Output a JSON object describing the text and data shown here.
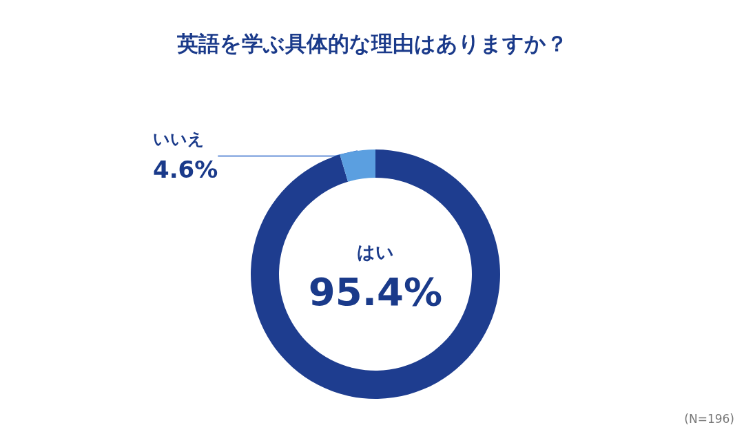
{
  "chart_data": {
    "type": "donut",
    "title": "英語を学ぶ具体的な理由はありますか？",
    "categories": [
      "はい",
      "いいえ"
    ],
    "values": [
      95.4,
      4.6
    ],
    "value_labels": [
      "95.4%",
      "4.6%"
    ],
    "colors": [
      "#1e3d8f",
      "#5b9fe0"
    ],
    "annotations": [
      "(N=196)"
    ],
    "legend": false
  }
}
